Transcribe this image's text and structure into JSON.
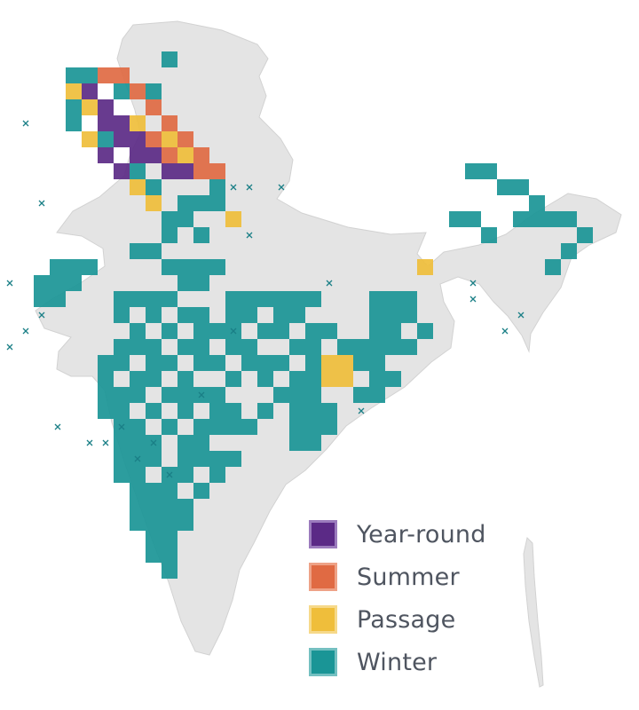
{
  "map": {
    "land_color": "#e4e4e4",
    "background_color": "#ffffff",
    "cells": [
      {
        "season": "Year-round",
        "points": [
          [
            -7,
            -3
          ],
          [
            -6,
            -2
          ],
          [
            -6,
            -1
          ],
          [
            -5,
            -1
          ],
          [
            -5,
            0
          ],
          [
            -4,
            0
          ],
          [
            -4,
            1
          ],
          [
            -3,
            1
          ],
          [
            -2,
            2
          ],
          [
            -1,
            2
          ],
          [
            -6,
            1
          ],
          [
            -5,
            2
          ]
        ]
      },
      {
        "season": "Summer",
        "points": [
          [
            -6,
            -4
          ],
          [
            -5,
            -4
          ],
          [
            -4,
            -3
          ],
          [
            -3,
            -2
          ],
          [
            -2,
            -1
          ],
          [
            -1,
            0
          ],
          [
            0,
            1
          ],
          [
            -3,
            0
          ],
          [
            -2,
            1
          ],
          [
            0,
            2
          ],
          [
            1,
            2
          ]
        ]
      },
      {
        "season": "Passage",
        "points": [
          [
            -8,
            -3
          ],
          [
            -7,
            -2
          ],
          [
            -7,
            0
          ],
          [
            -4,
            -1
          ],
          [
            -2,
            0
          ],
          [
            -1,
            1
          ],
          [
            -4,
            3
          ],
          [
            -3,
            4
          ],
          [
            2,
            5
          ],
          [
            8,
            14
          ],
          [
            9,
            14
          ],
          [
            8,
            15
          ],
          [
            9,
            15
          ],
          [
            14,
            8
          ]
        ]
      },
      {
        "season": "Winter",
        "points": [
          [
            -8,
            -4
          ],
          [
            -7,
            -4
          ],
          [
            -8,
            -2
          ],
          [
            -8,
            -1
          ],
          [
            -6,
            0
          ],
          [
            -4,
            2
          ],
          [
            -3,
            3
          ],
          [
            0,
            4
          ],
          [
            1,
            4
          ],
          [
            -2,
            5
          ],
          [
            -1,
            5
          ],
          [
            0,
            6
          ],
          [
            -2,
            6
          ],
          [
            -3,
            7
          ],
          [
            -4,
            7
          ],
          [
            -2,
            8
          ],
          [
            -1,
            8
          ],
          [
            0,
            8
          ],
          [
            1,
            8
          ],
          [
            -1,
            9
          ],
          [
            0,
            9
          ],
          [
            -9,
            8
          ],
          [
            -8,
            8
          ],
          [
            -7,
            8
          ],
          [
            -8,
            9
          ],
          [
            -10,
            10
          ],
          [
            -9,
            10
          ],
          [
            -5,
            10
          ],
          [
            -4,
            10
          ],
          [
            -3,
            10
          ],
          [
            -2,
            10
          ],
          [
            2,
            10
          ],
          [
            3,
            10
          ],
          [
            4,
            10
          ],
          [
            5,
            10
          ],
          [
            6,
            10
          ],
          [
            7,
            10
          ],
          [
            11,
            10
          ],
          [
            12,
            10
          ],
          [
            13,
            10
          ],
          [
            -5,
            11
          ],
          [
            -3,
            11
          ],
          [
            -1,
            11
          ],
          [
            0,
            11
          ],
          [
            2,
            11
          ],
          [
            3,
            11
          ],
          [
            5,
            11
          ],
          [
            6,
            11
          ],
          [
            11,
            11
          ],
          [
            12,
            11
          ],
          [
            13,
            11
          ],
          [
            -4,
            12
          ],
          [
            -2,
            12
          ],
          [
            0,
            12
          ],
          [
            1,
            12
          ],
          [
            2,
            12
          ],
          [
            4,
            12
          ],
          [
            5,
            12
          ],
          [
            7,
            12
          ],
          [
            8,
            12
          ],
          [
            11,
            12
          ],
          [
            12,
            12
          ],
          [
            14,
            12
          ],
          [
            -5,
            13
          ],
          [
            -4,
            13
          ],
          [
            -3,
            13
          ],
          [
            -1,
            13
          ],
          [
            0,
            13
          ],
          [
            2,
            13
          ],
          [
            3,
            13
          ],
          [
            6,
            13
          ],
          [
            7,
            13
          ],
          [
            9,
            13
          ],
          [
            10,
            13
          ],
          [
            11,
            13
          ],
          [
            12,
            13
          ],
          [
            13,
            13
          ],
          [
            -6,
            14
          ],
          [
            -5,
            14
          ],
          [
            -3,
            14
          ],
          [
            -2,
            14
          ],
          [
            0,
            14
          ],
          [
            1,
            14
          ],
          [
            3,
            14
          ],
          [
            4,
            14
          ],
          [
            5,
            14
          ],
          [
            7,
            14
          ],
          [
            10,
            14
          ],
          [
            11,
            14
          ],
          [
            -6,
            15
          ],
          [
            -4,
            15
          ],
          [
            -3,
            15
          ],
          [
            -1,
            15
          ],
          [
            2,
            15
          ],
          [
            4,
            15
          ],
          [
            6,
            15
          ],
          [
            7,
            15
          ],
          [
            11,
            15
          ],
          [
            12,
            15
          ],
          [
            -6,
            16
          ],
          [
            -5,
            16
          ],
          [
            -4,
            16
          ],
          [
            -2,
            16
          ],
          [
            -1,
            16
          ],
          [
            0,
            16
          ],
          [
            1,
            16
          ],
          [
            5,
            16
          ],
          [
            6,
            16
          ],
          [
            7,
            16
          ],
          [
            10,
            16
          ],
          [
            11,
            16
          ],
          [
            -6,
            17
          ],
          [
            -5,
            17
          ],
          [
            -3,
            17
          ],
          [
            -1,
            17
          ],
          [
            1,
            17
          ],
          [
            2,
            17
          ],
          [
            4,
            17
          ],
          [
            6,
            17
          ],
          [
            7,
            17
          ],
          [
            8,
            17
          ],
          [
            -5,
            18
          ],
          [
            -4,
            18
          ],
          [
            -2,
            18
          ],
          [
            0,
            18
          ],
          [
            1,
            18
          ],
          [
            2,
            18
          ],
          [
            3,
            18
          ],
          [
            6,
            18
          ],
          [
            7,
            18
          ],
          [
            8,
            18
          ],
          [
            -5,
            19
          ],
          [
            -4,
            19
          ],
          [
            -3,
            19
          ],
          [
            -1,
            19
          ],
          [
            0,
            19
          ],
          [
            6,
            19
          ],
          [
            7,
            19
          ],
          [
            -5,
            20
          ],
          [
            -4,
            20
          ],
          [
            -3,
            20
          ],
          [
            -1,
            20
          ],
          [
            0,
            20
          ],
          [
            1,
            20
          ],
          [
            2,
            20
          ],
          [
            -5,
            21
          ],
          [
            -4,
            21
          ],
          [
            -2,
            21
          ],
          [
            -1,
            21
          ],
          [
            1,
            21
          ],
          [
            -4,
            22
          ],
          [
            -3,
            22
          ],
          [
            -2,
            22
          ],
          [
            0,
            22
          ],
          [
            -4,
            23
          ],
          [
            -3,
            23
          ],
          [
            -2,
            23
          ],
          [
            -1,
            23
          ],
          [
            -4,
            24
          ],
          [
            -3,
            24
          ],
          [
            -2,
            24
          ],
          [
            -1,
            24
          ],
          [
            -3,
            25
          ],
          [
            -2,
            25
          ],
          [
            -3,
            26
          ],
          [
            -2,
            26
          ],
          [
            -2,
            27
          ],
          [
            17,
            2
          ],
          [
            18,
            2
          ],
          [
            19,
            3
          ],
          [
            20,
            3
          ],
          [
            21,
            4
          ],
          [
            20,
            5
          ],
          [
            21,
            5
          ],
          [
            22,
            5
          ],
          [
            23,
            5
          ],
          [
            24,
            6
          ],
          [
            23,
            7
          ],
          [
            22,
            8
          ],
          [
            16,
            5
          ],
          [
            17,
            5
          ],
          [
            18,
            6
          ],
          [
            -2,
            -5
          ],
          [
            -3,
            -3
          ],
          [
            -5,
            -3
          ],
          [
            1,
            3
          ],
          [
            -1,
            4
          ],
          [
            -9,
            9
          ],
          [
            -10,
            9
          ]
        ]
      }
    ],
    "crosses": [
      [
        -11,
        -1
      ],
      [
        2,
        3
      ],
      [
        3,
        3
      ],
      [
        5,
        3
      ],
      [
        3,
        6
      ],
      [
        -13,
        4
      ],
      [
        8,
        9
      ],
      [
        -10,
        11
      ],
      [
        -11,
        12
      ],
      [
        -12,
        13
      ],
      [
        2,
        12
      ],
      [
        -13,
        15
      ],
      [
        0,
        16
      ],
      [
        -5,
        18
      ],
      [
        -6,
        19
      ],
      [
        -7,
        19
      ],
      [
        -4,
        20
      ],
      [
        -3,
        19
      ],
      [
        -9,
        18
      ],
      [
        -2,
        21
      ],
      [
        10,
        17
      ],
      [
        17,
        9
      ],
      [
        17,
        10
      ],
      [
        20,
        11
      ],
      [
        19,
        12
      ],
      [
        -12,
        9
      ],
      [
        -14,
        5
      ],
      [
        -10,
        4
      ]
    ]
  },
  "legend": {
    "items": [
      {
        "label": "Year-round",
        "fill": "#5b2a86",
        "border": "#9b7bbd"
      },
      {
        "label": "Summer",
        "fill": "#e06a43",
        "border": "#eea287"
      },
      {
        "label": "Passage",
        "fill": "#efbe3b",
        "border": "#f6d98a"
      },
      {
        "label": "Winter",
        "fill": "#1a9596",
        "border": "#74c0c1"
      }
    ]
  }
}
